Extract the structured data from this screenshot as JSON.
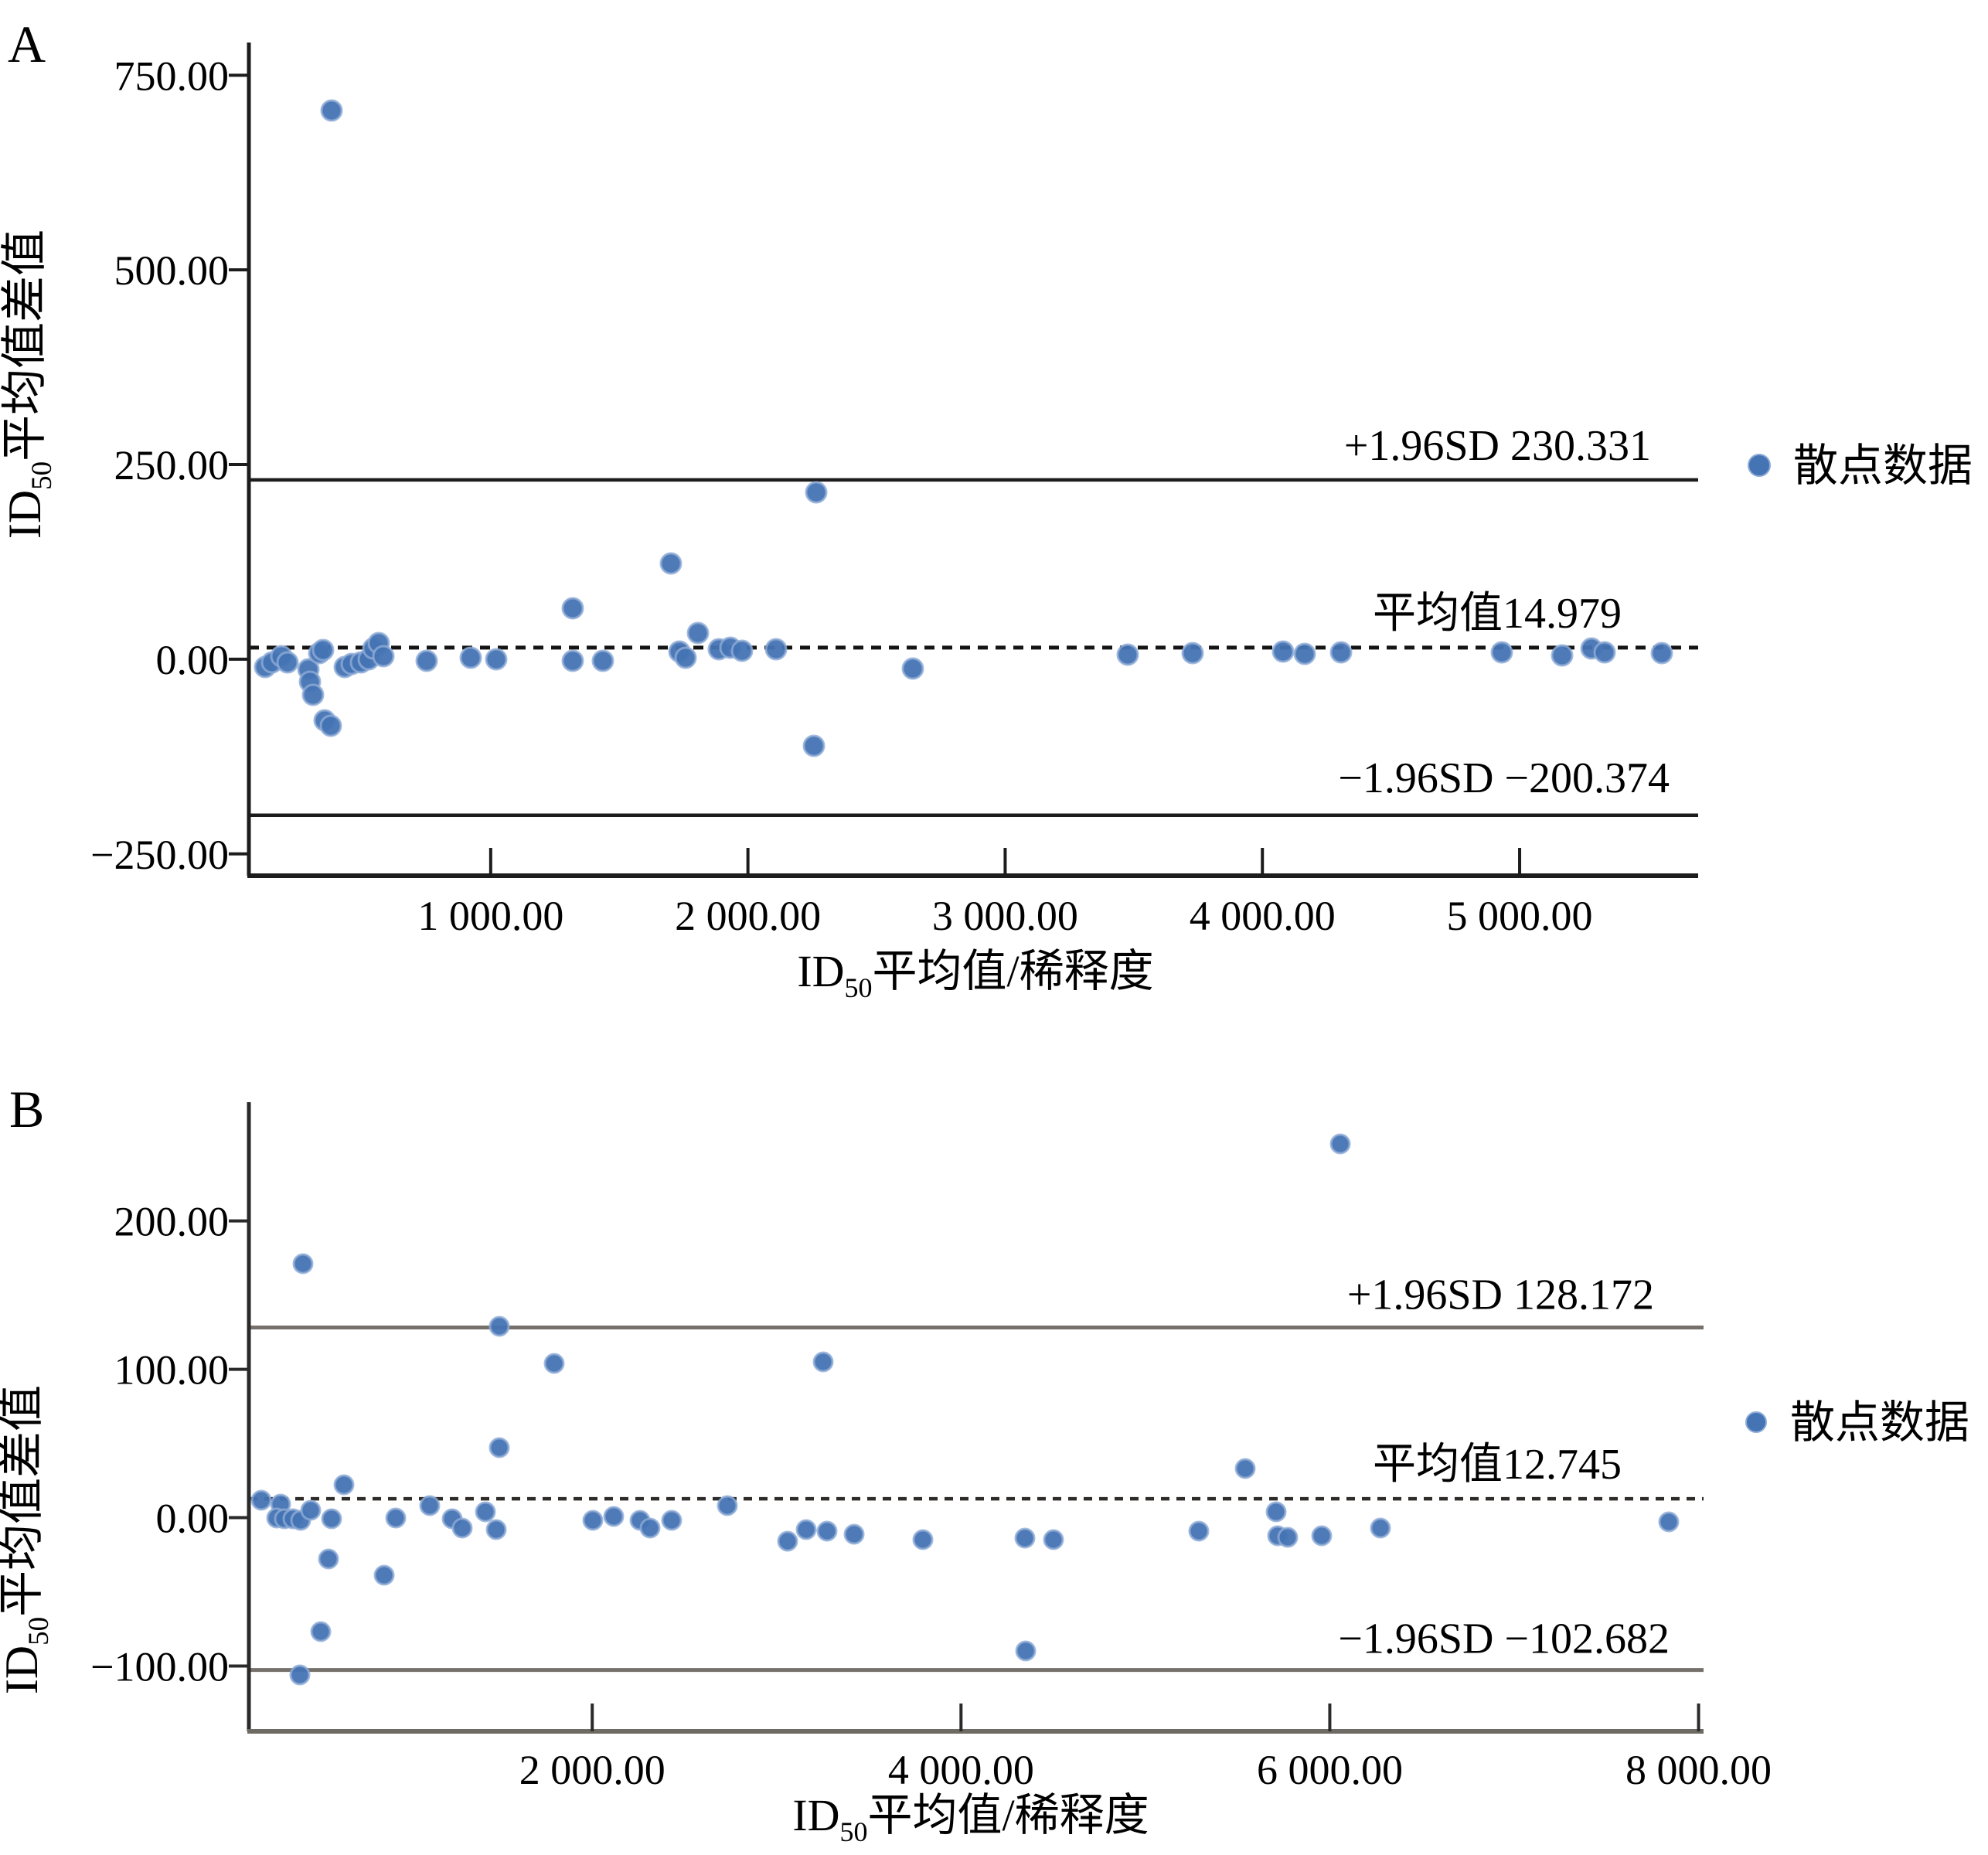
{
  "figure": {
    "background": "#ffffff",
    "panels": [
      "A",
      "B"
    ]
  },
  "chart_data": [
    {
      "id": "panel-a",
      "type": "scatter",
      "panel_label": "A",
      "title": "",
      "xlabel_parts": [
        [
          "ID",
          false
        ],
        [
          "50",
          true
        ],
        [
          "平均值/稀释度",
          false
        ]
      ],
      "ylabel_parts": [
        [
          "ID",
          false
        ],
        [
          "50",
          true
        ],
        [
          "平均值差值",
          false
        ]
      ],
      "x_ticks": {
        "values": [
          1000,
          2000,
          3000,
          4000,
          5000
        ],
        "labels": [
          "1 000.00",
          "2 000.00",
          "3 000.00",
          "4 000.00",
          "5 000.00"
        ]
      },
      "y_ticks": {
        "values": [
          750,
          500,
          250,
          0,
          -250
        ],
        "labels": [
          "750.00",
          "500.00",
          "250.00",
          "0.00",
          "−250.00"
        ]
      },
      "xlim": [
        60,
        5694
      ],
      "ylim": [
        -278,
        792
      ],
      "grid": "off",
      "legend": {
        "label": "散点数据",
        "position": "right-middle"
      },
      "ref_lines": {
        "upper": {
          "value": 230.331,
          "label": "+1.96SD 230.331",
          "style": "solid"
        },
        "mean": {
          "value": 14.979,
          "label": "平均值14.979",
          "style": "dashed"
        },
        "lower": {
          "value": -200.374,
          "label": "−1.96SD −200.374",
          "style": "solid"
        }
      },
      "points": [
        [
          382,
          705
        ],
        [
          123,
          -10
        ],
        [
          150,
          -4
        ],
        [
          186,
          4
        ],
        [
          210,
          -4
        ],
        [
          291,
          -13
        ],
        [
          297,
          -29
        ],
        [
          309,
          -46
        ],
        [
          334,
          8
        ],
        [
          349,
          12
        ],
        [
          355,
          -78
        ],
        [
          378,
          -85
        ],
        [
          433,
          -10
        ],
        [
          460,
          -6
        ],
        [
          496,
          -4
        ],
        [
          526,
          0
        ],
        [
          544,
          14
        ],
        [
          565,
          21
        ],
        [
          583,
          4
        ],
        [
          751,
          -2
        ],
        [
          922,
          2
        ],
        [
          1021,
          0
        ],
        [
          1319,
          65
        ],
        [
          1319,
          -2
        ],
        [
          1436,
          -2
        ],
        [
          1701,
          123
        ],
        [
          1734,
          10
        ],
        [
          1758,
          2
        ],
        [
          1806,
          34
        ],
        [
          1887,
          13
        ],
        [
          1932,
          15
        ],
        [
          1977,
          11
        ],
        [
          2110,
          13
        ],
        [
          2266,
          214
        ],
        [
          2257,
          -111
        ],
        [
          2640,
          -12
        ],
        [
          3476,
          6
        ],
        [
          3728,
          8
        ],
        [
          4080,
          10
        ],
        [
          4164,
          7
        ],
        [
          4306,
          9
        ],
        [
          4931,
          9
        ],
        [
          5165,
          5
        ],
        [
          5280,
          14
        ],
        [
          5330,
          9
        ],
        [
          5553,
          8
        ]
      ],
      "colors": {
        "point": "#4574b4",
        "point_edge": "#8fabd6",
        "solid_line": "#1c1c1c",
        "dashed_line": "#141414",
        "axis": "#1c1c1c",
        "text": "#000000"
      }
    },
    {
      "id": "panel-b",
      "type": "scatter",
      "panel_label": "B",
      "title": "",
      "xlabel_parts": [
        [
          "ID",
          false
        ],
        [
          "50",
          true
        ],
        [
          "平均值/稀释度",
          false
        ]
      ],
      "ylabel_parts": [
        [
          "ID",
          false
        ],
        [
          "50",
          true
        ],
        [
          "平均值差值",
          false
        ]
      ],
      "x_ticks": {
        "values": [
          2000,
          4000,
          6000,
          8000
        ],
        "labels": [
          "2 000.00",
          "4 000.00",
          "6 000.00",
          "8 000.00"
        ]
      },
      "y_ticks": {
        "values": [
          200,
          100,
          0,
          -100
        ],
        "labels": [
          "200.00",
          "100.00",
          "0.00",
          "−100.00"
        ]
      },
      "xlim": [
        138,
        8027
      ],
      "ylim": [
        -144,
        280
      ],
      "grid": "off",
      "legend": {
        "label": "散点数据",
        "position": "right-middle"
      },
      "ref_lines": {
        "upper": {
          "value": 128.172,
          "label": "+1.96SD 128.172",
          "style": "solid"
        },
        "mean": {
          "value": 12.745,
          "label": "平均值12.745",
          "style": "dashed"
        },
        "lower": {
          "value": -102.682,
          "label": "−1.96SD −102.682",
          "style": "solid"
        }
      },
      "points": [
        [
          430,
          171
        ],
        [
          205,
          12
        ],
        [
          310,
          9
        ],
        [
          290,
          0
        ],
        [
          330,
          -1
        ],
        [
          375,
          -1
        ],
        [
          420,
          -2
        ],
        [
          474,
          5
        ],
        [
          570,
          -28
        ],
        [
          654,
          22
        ],
        [
          587,
          -1
        ],
        [
          872,
          -39
        ],
        [
          528,
          -77
        ],
        [
          415,
          -106
        ],
        [
          935,
          0
        ],
        [
          1119,
          8
        ],
        [
          1240,
          -1
        ],
        [
          1295,
          -7
        ],
        [
          1421,
          4
        ],
        [
          1480,
          -8
        ],
        [
          1496,
          129
        ],
        [
          1496,
          47
        ],
        [
          1794,
          104
        ],
        [
          2003,
          -2
        ],
        [
          2116,
          1
        ],
        [
          2258,
          -2
        ],
        [
          2313,
          -7
        ],
        [
          2431,
          -2
        ],
        [
          2732,
          8
        ],
        [
          3060,
          -16
        ],
        [
          3160,
          -8
        ],
        [
          3252,
          105
        ],
        [
          3273,
          -9
        ],
        [
          3420,
          -11
        ],
        [
          3793,
          -15
        ],
        [
          4346,
          -14
        ],
        [
          4502,
          -15
        ],
        [
          4350,
          -90
        ],
        [
          5290,
          -9
        ],
        [
          5541,
          33
        ],
        [
          5709,
          4
        ],
        [
          5717,
          -12
        ],
        [
          5771,
          -13
        ],
        [
          5955,
          -12
        ],
        [
          6274,
          -7
        ],
        [
          6056,
          252
        ],
        [
          7837,
          -3
        ]
      ],
      "colors": {
        "point": "#4574b4",
        "point_edge": "#8fabd6",
        "solid_line": "#76706a",
        "dashed_line": "#2e2b28",
        "axis": "#2a2a2a",
        "x_axis": "#6e6a64",
        "text": "#000000"
      }
    }
  ]
}
